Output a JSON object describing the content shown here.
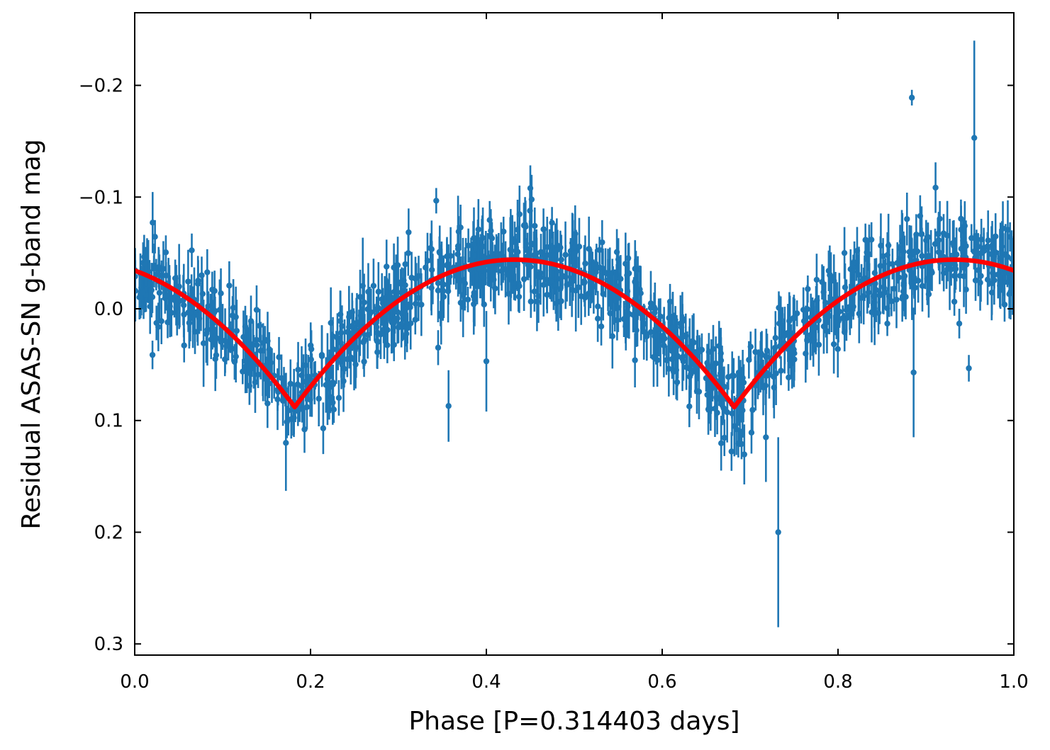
{
  "chart_data": {
    "type": "scatter",
    "title": "",
    "xlabel": "Phase [P=0.314403 days]",
    "ylabel": "Residual ASAS-SN g-band mag",
    "xlim": [
      0.0,
      1.0
    ],
    "ylim": [
      0.31,
      -0.265
    ],
    "y_inverted": true,
    "grid": false,
    "legend": "none",
    "x_ticks": [
      0.0,
      0.2,
      0.4,
      0.6,
      0.8,
      1.0
    ],
    "x_tick_labels": [
      "0.0",
      "0.2",
      "0.4",
      "0.6",
      "0.8",
      "1.0"
    ],
    "y_ticks": [
      -0.2,
      -0.1,
      0.0,
      0.1,
      0.2,
      0.3
    ],
    "y_tick_labels": [
      "−0.2",
      "−0.1",
      "0.0",
      "0.1",
      "0.2",
      "0.3"
    ],
    "colors": {
      "points": "#1f77b4",
      "model": "#ff0000",
      "axes": "#000000"
    },
    "series": [
      {
        "name": "ASAS-SN g-band residuals",
        "kind": "errorbar-scatter",
        "n_points_approx": 1100,
        "typical_error": 0.02,
        "noise_sigma": 0.018,
        "notable_points": [
          {
            "x": 0.884,
            "y": -0.189,
            "err": 0.007
          },
          {
            "x": 0.955,
            "y": -0.153,
            "err": 0.087
          },
          {
            "x": 0.732,
            "y": 0.2,
            "err": 0.085
          },
          {
            "x": 0.172,
            "y": 0.12,
            "err": 0.043
          },
          {
            "x": 0.357,
            "y": 0.087,
            "err": 0.032
          },
          {
            "x": 0.4,
            "y": 0.047,
            "err": 0.045
          },
          {
            "x": 0.886,
            "y": 0.057,
            "err": 0.058
          },
          {
            "x": 0.718,
            "y": 0.115,
            "err": 0.04
          }
        ]
      },
      {
        "name": "model fit",
        "kind": "line",
        "minima_x": [
          0.182,
          0.682
        ],
        "minima_y": 0.088,
        "maxima_x": [
          0.432,
          0.932
        ],
        "maxima_y": -0.044,
        "phase_zero_y": -0.035
      }
    ]
  }
}
